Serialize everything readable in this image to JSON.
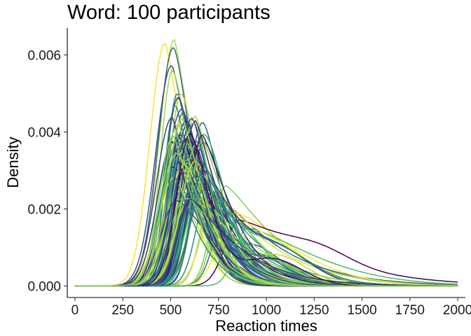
{
  "chart_data": {
    "type": "line",
    "title": "Word: 100 participants",
    "xlabel": "Reaction times",
    "ylabel": "Density",
    "xlim": [
      -40,
      2040
    ],
    "ylim": [
      -0.0003,
      0.0067
    ],
    "x_ticks": [
      0,
      250,
      500,
      750,
      1000,
      1250,
      1500,
      1750,
      2000
    ],
    "x_tick_labels": [
      "0",
      "250",
      "500",
      "750",
      "1000",
      "1250",
      "1500",
      "1750",
      "2000"
    ],
    "y_ticks": [
      0,
      0.002,
      0.004,
      0.006
    ],
    "y_tick_labels": [
      "0.000",
      "0.002",
      "0.004",
      "0.006"
    ],
    "grid": false,
    "legend": "none",
    "colormap": "viridis",
    "palette": [
      "#440154",
      "#3b528b",
      "#21908c",
      "#5dc863",
      "#fde725"
    ],
    "x_range": [
      0,
      2000
    ],
    "series_count": 100,
    "series": [
      {
        "peak_x": 470,
        "peak_y": 0.0063
      },
      {
        "peak_x": 520,
        "peak_y": 0.0064
      },
      {
        "peak_x": 515,
        "peak_y": 0.0062
      },
      {
        "peak_x": 505,
        "peak_y": 0.0057
      },
      {
        "peak_x": 510,
        "peak_y": 0.0056
      },
      {
        "peak_x": 535,
        "peak_y": 0.005
      },
      {
        "peak_x": 555,
        "peak_y": 0.005
      },
      {
        "peak_x": 540,
        "peak_y": 0.0049
      },
      {
        "peak_x": 525,
        "peak_y": 0.0047
      },
      {
        "peak_x": 560,
        "peak_y": 0.0046
      },
      {
        "peak_x": 565,
        "peak_y": 0.0045
      },
      {
        "peak_x": 580,
        "peak_y": 0.0043
      },
      {
        "peak_x": 575,
        "peak_y": 0.0042
      },
      {
        "peak_x": 590,
        "peak_y": 0.004
      },
      {
        "peak_x": 600,
        "peak_y": 0.0038
      },
      {
        "peak_x": 610,
        "peak_y": 0.0036
      },
      {
        "peak_x": 620,
        "peak_y": 0.0034
      },
      {
        "peak_x": 630,
        "peak_y": 0.0032
      },
      {
        "peak_x": 640,
        "peak_y": 0.003
      },
      {
        "peak_x": 650,
        "peak_y": 0.0029
      },
      {
        "peak_x": 660,
        "peak_y": 0.0028
      },
      {
        "peak_x": 670,
        "peak_y": 0.0027
      },
      {
        "peak_x": 680,
        "peak_y": 0.0026
      },
      {
        "peak_x": 700,
        "peak_y": 0.0025
      },
      {
        "peak_x": 720,
        "peak_y": 0.0024
      },
      {
        "peak_x": 740,
        "peak_y": 0.0023
      },
      {
        "peak_x": 760,
        "peak_y": 0.0022
      },
      {
        "peak_x": 790,
        "peak_y": 0.0026
      },
      {
        "peak_x": 800,
        "peak_y": 0.0021
      },
      {
        "peak_x": 830,
        "peak_y": 0.0019
      },
      {
        "peak_x": 860,
        "peak_y": 0.0017
      },
      {
        "peak_x": 900,
        "peak_y": 0.0015
      }
    ]
  }
}
